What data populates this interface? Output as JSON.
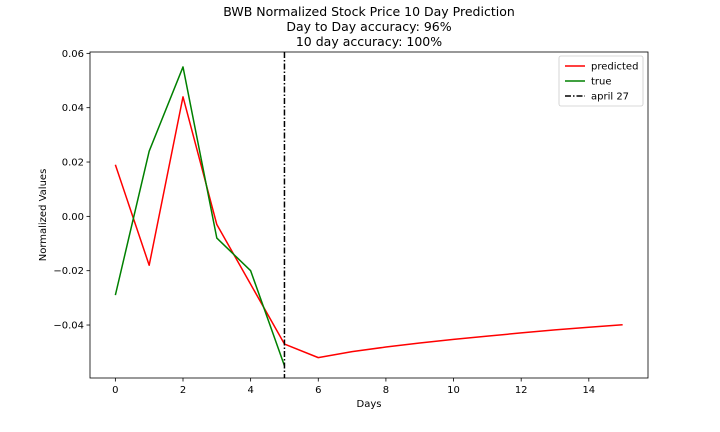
{
  "chart_data": {
    "type": "line",
    "title": "BWB Normalized Stock Price 10 Day Prediction",
    "subtitle": [
      "Day to Day accuracy: 96%",
      "10 day accuracy: 100%"
    ],
    "xlabel": "Days",
    "ylabel": "Normalized Values",
    "xlim": [
      -0.75,
      15.75
    ],
    "ylim": [
      -0.0595,
      0.0605
    ],
    "xticks": [
      0,
      2,
      4,
      6,
      8,
      10,
      12,
      14
    ],
    "yticks": [
      -0.04,
      -0.02,
      0.0,
      0.02,
      0.04,
      0.06
    ],
    "ytick_labels": [
      "−0.04",
      "−0.02",
      "0.00",
      "0.02",
      "0.04",
      "0.06"
    ],
    "grid": false,
    "legend_position": "top-right",
    "series": [
      {
        "name": "predicted",
        "color": "#ff0000",
        "x": [
          0,
          1,
          2,
          3,
          4,
          5,
          6,
          7,
          8,
          9,
          10,
          11,
          12,
          13,
          14,
          15
        ],
        "y": [
          0.019,
          -0.018,
          0.044,
          -0.003,
          -0.025,
          -0.047,
          -0.052,
          -0.0498,
          -0.0481,
          -0.0466,
          -0.0453,
          -0.0441,
          -0.0429,
          -0.0418,
          -0.0408,
          -0.0399
        ]
      },
      {
        "name": "true",
        "color": "#008000",
        "x": [
          0,
          1,
          2,
          3,
          4,
          5
        ],
        "y": [
          -0.029,
          0.024,
          0.055,
          -0.008,
          -0.02,
          -0.055
        ]
      }
    ],
    "vline": {
      "name": "april 27",
      "x": 5,
      "color": "#000000",
      "style": "dash-dot"
    }
  }
}
